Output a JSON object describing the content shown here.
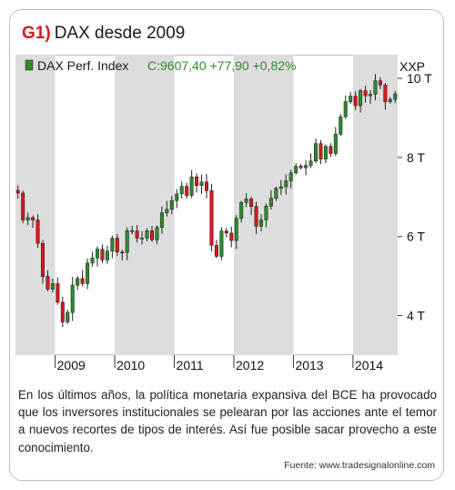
{
  "header": {
    "tag": "G1)",
    "title": "DAX desde 2009"
  },
  "legend": {
    "name": "DAX Perf. Index",
    "quote": "C:9607,40 +77,90 +0,82%",
    "name_color": "#1a1a1a",
    "quote_color": "#2e8b2e",
    "marker_color": "#2e8b2e"
  },
  "colors": {
    "up": "#2e8b2e",
    "down": "#d8191e",
    "band": "#dddddd",
    "wick": "#222222"
  },
  "chart_data": {
    "type": "candlestick",
    "title": "DAX desde 2009",
    "series_name": "DAX Perf. Index",
    "y_unit_label": "XXP",
    "y_ticks": [
      {
        "value": 4000,
        "label": "4 T"
      },
      {
        "value": 6000,
        "label": "6 T"
      },
      {
        "value": 8000,
        "label": "8 T"
      },
      {
        "value": 10000,
        "label": "10 T"
      }
    ],
    "ylim": [
      3000,
      10600
    ],
    "x_ticks": [
      "2009",
      "2010",
      "2011",
      "2012",
      "2013",
      "2014"
    ],
    "xlim": [
      "2008-05",
      "2014-09"
    ],
    "shaded_years": [
      2008,
      2010,
      2012,
      2014
    ],
    "grid": false,
    "legend_position": "top-left",
    "last_close": 9607.4,
    "change": 77.9,
    "change_pct": 0.82,
    "monthly_close": [
      [
        "2008-05",
        7100
      ],
      [
        "2008-06",
        6420
      ],
      [
        "2008-07",
        6480
      ],
      [
        "2008-08",
        6420
      ],
      [
        "2008-09",
        5830
      ],
      [
        "2008-10",
        4990
      ],
      [
        "2008-11",
        4670
      ],
      [
        "2008-12",
        4810
      ],
      [
        "2009-01",
        4340
      ],
      [
        "2009-02",
        3840
      ],
      [
        "2009-03",
        4080
      ],
      [
        "2009-04",
        4770
      ],
      [
        "2009-05",
        4940
      ],
      [
        "2009-06",
        4810
      ],
      [
        "2009-07",
        5330
      ],
      [
        "2009-08",
        5460
      ],
      [
        "2009-09",
        5680
      ],
      [
        "2009-10",
        5410
      ],
      [
        "2009-11",
        5630
      ],
      [
        "2009-12",
        5960
      ],
      [
        "2010-01",
        5610
      ],
      [
        "2010-02",
        5600
      ],
      [
        "2010-03",
        6150
      ],
      [
        "2010-04",
        6140
      ],
      [
        "2010-05",
        5960
      ],
      [
        "2010-06",
        5960
      ],
      [
        "2010-07",
        6150
      ],
      [
        "2010-08",
        5920
      ],
      [
        "2010-09",
        6230
      ],
      [
        "2010-10",
        6600
      ],
      [
        "2010-11",
        6690
      ],
      [
        "2010-12",
        6910
      ],
      [
        "2011-01",
        7080
      ],
      [
        "2011-02",
        7270
      ],
      [
        "2011-03",
        7040
      ],
      [
        "2011-04",
        7510
      ],
      [
        "2011-05",
        7290
      ],
      [
        "2011-06",
        7380
      ],
      [
        "2011-07",
        7160
      ],
      [
        "2011-08",
        5780
      ],
      [
        "2011-09",
        5500
      ],
      [
        "2011-10",
        6140
      ],
      [
        "2011-11",
        6090
      ],
      [
        "2011-12",
        5900
      ],
      [
        "2012-01",
        6460
      ],
      [
        "2012-02",
        6860
      ],
      [
        "2012-03",
        6950
      ],
      [
        "2012-04",
        6760
      ],
      [
        "2012-05",
        6260
      ],
      [
        "2012-06",
        6420
      ],
      [
        "2012-07",
        6770
      ],
      [
        "2012-08",
        6970
      ],
      [
        "2012-09",
        7220
      ],
      [
        "2012-10",
        7260
      ],
      [
        "2012-11",
        7410
      ],
      [
        "2012-12",
        7610
      ],
      [
        "2013-01",
        7780
      ],
      [
        "2013-02",
        7740
      ],
      [
        "2013-03",
        7800
      ],
      [
        "2013-04",
        7910
      ],
      [
        "2013-05",
        8350
      ],
      [
        "2013-06",
        7960
      ],
      [
        "2013-07",
        8280
      ],
      [
        "2013-08",
        8100
      ],
      [
        "2013-09",
        8590
      ],
      [
        "2013-10",
        9030
      ],
      [
        "2013-11",
        9410
      ],
      [
        "2013-12",
        9550
      ],
      [
        "2014-01",
        9310
      ],
      [
        "2014-02",
        9690
      ],
      [
        "2014-03",
        9560
      ],
      [
        "2014-04",
        9600
      ],
      [
        "2014-05",
        9940
      ],
      [
        "2014-06",
        9830
      ],
      [
        "2014-07",
        9410
      ],
      [
        "2014-08",
        9470
      ],
      [
        "2014-09",
        9607
      ]
    ]
  },
  "description": "En los últimos años, la política monetaria expansiva del BCE ha provocado que los inversores institucionales se pelearan por las acciones ante el temor a nuevos recortes de tipos de interés. Así fue posible sacar provecho a este conocimiento.",
  "source": "Fuente: www.tradesignalonline.com"
}
